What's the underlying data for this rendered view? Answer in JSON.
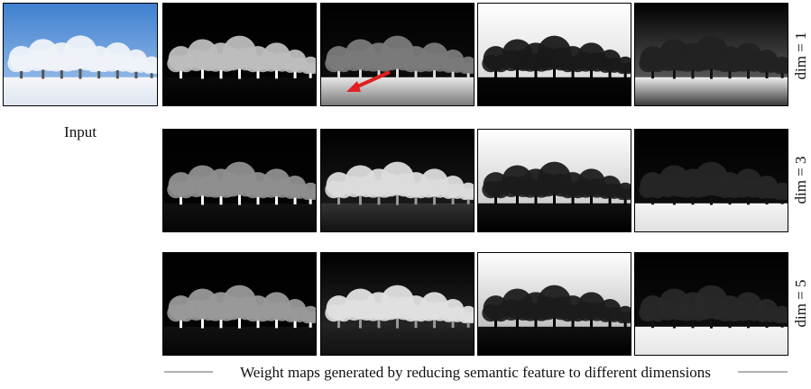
{
  "input_label": "Input",
  "rows": [
    {
      "label": "dim = 1"
    },
    {
      "label": "dim = 3"
    },
    {
      "label": "dim = 5"
    }
  ],
  "caption": "Weight maps generated by reducing semantic feature to different dimensions"
}
